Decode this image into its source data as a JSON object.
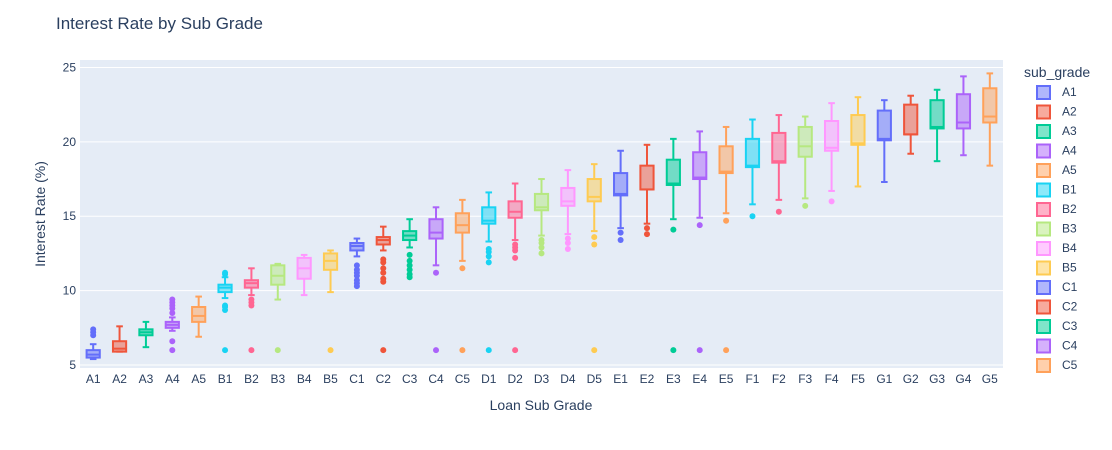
{
  "chart_data": {
    "type": "box",
    "title": "Interest Rate by Sub Grade",
    "xlabel": "Loan Sub Grade",
    "ylabel": "Interest Rate (%)",
    "ylim": [
      4.8,
      25.5
    ],
    "yticks": [
      5,
      10,
      15,
      20,
      25
    ],
    "grid": true,
    "legend": {
      "title": "sub_grade",
      "placement": "right"
    },
    "palette": [
      "#636efa",
      "#EF553B",
      "#00cc96",
      "#ab63fa",
      "#FFA15A",
      "#19d3f3",
      "#FF6692",
      "#B6E880",
      "#FF97FF",
      "#FECB52"
    ],
    "series": [
      {
        "name": "A1",
        "q1": 5.5,
        "median": 5.7,
        "q3": 6.0,
        "lower": 5.4,
        "upper": 6.4,
        "outliers": [
          7.0,
          7.2,
          7.4
        ]
      },
      {
        "name": "A2",
        "q1": 5.9,
        "median": 6.1,
        "q3": 6.6,
        "lower": 5.9,
        "upper": 7.6,
        "outliers": []
      },
      {
        "name": "A3",
        "q1": 7.0,
        "median": 7.2,
        "q3": 7.4,
        "lower": 6.2,
        "upper": 7.9,
        "outliers": []
      },
      {
        "name": "A4",
        "q1": 7.5,
        "median": 7.7,
        "q3": 7.9,
        "lower": 7.3,
        "upper": 8.2,
        "outliers": [
          6.0,
          6.6,
          8.5,
          8.8,
          9.0,
          9.2,
          9.4
        ]
      },
      {
        "name": "A5",
        "q1": 7.9,
        "median": 8.3,
        "q3": 8.9,
        "lower": 6.9,
        "upper": 9.6,
        "outliers": []
      },
      {
        "name": "B1",
        "q1": 9.9,
        "median": 10.2,
        "q3": 10.4,
        "lower": 9.5,
        "upper": 10.9,
        "outliers": [
          6.0,
          8.7,
          8.9,
          9.0,
          11.1,
          11.2
        ]
      },
      {
        "name": "B2",
        "q1": 10.2,
        "median": 10.5,
        "q3": 10.7,
        "lower": 9.7,
        "upper": 11.5,
        "outliers": [
          6.0,
          9.0,
          9.2,
          9.4
        ]
      },
      {
        "name": "B3",
        "q1": 10.4,
        "median": 11.0,
        "q3": 11.7,
        "lower": 9.4,
        "upper": 11.8,
        "outliers": [
          6.0
        ]
      },
      {
        "name": "B4",
        "q1": 10.8,
        "median": 11.5,
        "q3": 12.2,
        "lower": 9.7,
        "upper": 12.4,
        "outliers": []
      },
      {
        "name": "B5",
        "q1": 11.4,
        "median": 12.0,
        "q3": 12.5,
        "lower": 9.9,
        "upper": 12.7,
        "outliers": [
          6.0
        ]
      },
      {
        "name": "C1",
        "q1": 12.7,
        "median": 13.0,
        "q3": 13.2,
        "lower": 12.3,
        "upper": 13.5,
        "outliers": [
          10.3,
          10.5,
          10.7,
          11.0,
          11.2,
          11.4,
          11.7
        ]
      },
      {
        "name": "C2",
        "q1": 13.1,
        "median": 13.4,
        "q3": 13.6,
        "lower": 12.7,
        "upper": 14.3,
        "outliers": [
          6.0,
          10.6,
          10.8,
          11.2,
          11.5,
          11.9,
          12.1
        ]
      },
      {
        "name": "C3",
        "q1": 13.4,
        "median": 13.7,
        "q3": 14.0,
        "lower": 12.9,
        "upper": 14.8,
        "outliers": [
          10.9,
          11.1,
          11.4,
          11.7,
          12.0,
          12.4
        ]
      },
      {
        "name": "C4",
        "q1": 13.5,
        "median": 13.9,
        "q3": 14.8,
        "lower": 11.7,
        "upper": 15.6,
        "outliers": [
          6.0,
          11.2
        ]
      },
      {
        "name": "C5",
        "q1": 13.9,
        "median": 14.4,
        "q3": 15.2,
        "lower": 12.0,
        "upper": 16.1,
        "outliers": [
          6.0,
          11.5
        ]
      },
      {
        "name": "D1",
        "q1": 14.5,
        "median": 14.7,
        "q3": 15.6,
        "lower": 13.3,
        "upper": 16.6,
        "outliers": [
          6.0,
          11.9,
          12.3,
          12.6,
          12.8
        ]
      },
      {
        "name": "D2",
        "q1": 14.9,
        "median": 15.3,
        "q3": 16.0,
        "lower": 13.4,
        "upper": 17.2,
        "outliers": [
          6.0,
          12.2,
          12.7,
          12.9,
          13.1
        ]
      },
      {
        "name": "D3",
        "q1": 15.4,
        "median": 15.6,
        "q3": 16.5,
        "lower": 13.7,
        "upper": 17.5,
        "outliers": [
          12.5,
          12.9,
          13.2,
          13.4
        ]
      },
      {
        "name": "D4",
        "q1": 15.7,
        "median": 16.0,
        "q3": 16.9,
        "lower": 13.8,
        "upper": 18.1,
        "outliers": [
          12.8,
          13.2,
          13.5
        ]
      },
      {
        "name": "D5",
        "q1": 16.0,
        "median": 16.3,
        "q3": 17.5,
        "lower": 14.0,
        "upper": 18.5,
        "outliers": [
          6.0,
          13.1,
          13.6
        ]
      },
      {
        "name": "E1",
        "q1": 16.4,
        "median": 16.5,
        "q3": 17.9,
        "lower": 14.2,
        "upper": 19.4,
        "outliers": [
          13.4,
          13.9
        ]
      },
      {
        "name": "E2",
        "q1": 16.8,
        "median": 16.8,
        "q3": 18.4,
        "lower": 14.5,
        "upper": 19.8,
        "outliers": [
          13.8,
          14.2
        ]
      },
      {
        "name": "E3",
        "q1": 17.1,
        "median": 17.2,
        "q3": 18.8,
        "lower": 14.8,
        "upper": 20.2,
        "outliers": [
          6.0,
          14.1
        ]
      },
      {
        "name": "E4",
        "q1": 17.5,
        "median": 17.6,
        "q3": 19.3,
        "lower": 14.9,
        "upper": 20.7,
        "outliers": [
          6.0,
          14.4
        ]
      },
      {
        "name": "E5",
        "q1": 17.9,
        "median": 18.0,
        "q3": 19.7,
        "lower": 15.2,
        "upper": 21.0,
        "outliers": [
          6.0,
          14.7
        ]
      },
      {
        "name": "F1",
        "q1": 18.3,
        "median": 18.4,
        "q3": 20.2,
        "lower": 15.8,
        "upper": 21.5,
        "outliers": [
          15.0
        ]
      },
      {
        "name": "F2",
        "q1": 18.6,
        "median": 18.7,
        "q3": 20.6,
        "lower": 16.1,
        "upper": 21.8,
        "outliers": [
          15.3
        ]
      },
      {
        "name": "F3",
        "q1": 19.0,
        "median": 19.7,
        "q3": 21.0,
        "lower": 16.2,
        "upper": 21.7,
        "outliers": [
          15.7
        ]
      },
      {
        "name": "F4",
        "q1": 19.4,
        "median": 19.6,
        "q3": 21.4,
        "lower": 16.7,
        "upper": 22.6,
        "outliers": [
          16.0
        ]
      },
      {
        "name": "F5",
        "q1": 19.8,
        "median": 19.9,
        "q3": 21.8,
        "lower": 17.0,
        "upper": 23.0,
        "outliers": []
      },
      {
        "name": "G1",
        "q1": 20.1,
        "median": 20.2,
        "q3": 22.1,
        "lower": 17.3,
        "upper": 22.8,
        "outliers": []
      },
      {
        "name": "G2",
        "q1": 20.5,
        "median": 20.5,
        "q3": 22.5,
        "lower": 19.2,
        "upper": 23.1,
        "outliers": []
      },
      {
        "name": "G3",
        "q1": 20.9,
        "median": 21.0,
        "q3": 22.8,
        "lower": 18.7,
        "upper": 23.5,
        "outliers": []
      },
      {
        "name": "G4",
        "q1": 20.9,
        "median": 21.3,
        "q3": 23.2,
        "lower": 19.1,
        "upper": 24.4,
        "outliers": []
      },
      {
        "name": "G5",
        "q1": 21.3,
        "median": 21.7,
        "q3": 23.6,
        "lower": 18.4,
        "upper": 24.6,
        "outliers": []
      }
    ],
    "legend_visible_count": 15
  }
}
